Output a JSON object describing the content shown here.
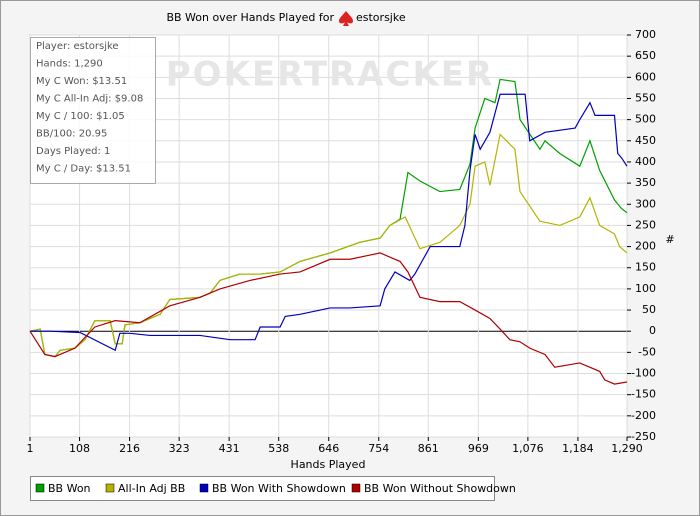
{
  "chart_data": {
    "type": "line",
    "title": "BB Won over Hands Played for",
    "player": "estorsjke",
    "watermark": "POKERTRACKER",
    "info_box": [
      "Player: estorsjke",
      "Hands: 1,290",
      "My C Won: $13.51",
      "My C All-In Adj: $9.08",
      "My C / 100: $1.05",
      "BB/100: 20.95",
      "Days Played: 1",
      "My C / Day: $13.51"
    ],
    "xlabel": "Hands Played",
    "ylabel": "#",
    "xlim": [
      1,
      1290
    ],
    "ylim": [
      -250,
      700
    ],
    "xticks": [
      1,
      108,
      216,
      323,
      431,
      538,
      646,
      754,
      861,
      969,
      {
        "value": 1076,
        "label": "1,076"
      },
      {
        "value": 1184,
        "label": "1,184"
      },
      {
        "value": 1290,
        "label": "1,290"
      }
    ],
    "yticks": [
      -250,
      -200,
      -150,
      -100,
      -50,
      0,
      50,
      100,
      150,
      200,
      250,
      300,
      350,
      400,
      450,
      500,
      550,
      600,
      650,
      700
    ],
    "grid": true,
    "series": [
      {
        "name": "BB Won",
        "color": "#00a000",
        "x": [
          1,
          23,
          33,
          55,
          66,
          98,
          120,
          141,
          174,
          185,
          200,
          206,
          238,
          282,
          303,
          368,
          390,
          411,
          454,
          498,
          541,
          584,
          649,
          713,
          757,
          778,
          800,
          817,
          843,
          886,
          929,
          951,
          962,
          983,
          1005,
          1016,
          1048,
          1059,
          1102,
          1113,
          1145,
          1188,
          1210,
          1231,
          1263,
          1278,
          1290
        ],
        "values": [
          0,
          5,
          -55,
          -60,
          -45,
          -40,
          -20,
          25,
          25,
          -30,
          -30,
          15,
          20,
          40,
          75,
          80,
          90,
          120,
          135,
          135,
          140,
          165,
          185,
          210,
          220,
          250,
          265,
          375,
          355,
          330,
          335,
          395,
          480,
          550,
          540,
          595,
          590,
          500,
          430,
          450,
          420,
          390,
          450,
          380,
          310,
          290,
          280
        ]
      },
      {
        "name": "All-In Adj BB",
        "color": "#b4b400",
        "x": [
          1,
          23,
          33,
          55,
          66,
          98,
          120,
          141,
          174,
          185,
          200,
          206,
          238,
          282,
          303,
          368,
          390,
          411,
          454,
          498,
          541,
          584,
          649,
          713,
          757,
          778,
          811,
          843,
          886,
          929,
          951,
          962,
          983,
          994,
          1016,
          1048,
          1059,
          1102,
          1145,
          1188,
          1210,
          1231,
          1263,
          1274,
          1290
        ],
        "values": [
          0,
          5,
          -55,
          -60,
          -45,
          -40,
          -20,
          25,
          25,
          -30,
          -30,
          15,
          20,
          40,
          75,
          80,
          90,
          120,
          135,
          135,
          140,
          165,
          185,
          210,
          220,
          250,
          270,
          195,
          210,
          250,
          300,
          390,
          400,
          345,
          465,
          430,
          330,
          260,
          250,
          270,
          315,
          250,
          230,
          200,
          185
        ]
      },
      {
        "name": "BB Won With Showdown",
        "color": "#0000c0",
        "x": [
          1,
          44,
          109,
          185,
          195,
          217,
          260,
          368,
          433,
          487,
          498,
          541,
          552,
          584,
          649,
          692,
          757,
          767,
          789,
          821,
          832,
          865,
          929,
          940,
          951,
          962,
          973,
          994,
          1016,
          1070,
          1080,
          1113,
          1178,
          1188,
          1210,
          1221,
          1263,
          1270,
          1278,
          1290
        ],
        "values": [
          0,
          0,
          -3,
          -45,
          -5,
          -5,
          -10,
          -10,
          -20,
          -20,
          10,
          10,
          35,
          40,
          55,
          55,
          60,
          100,
          140,
          120,
          135,
          200,
          200,
          250,
          380,
          465,
          430,
          470,
          560,
          560,
          450,
          470,
          480,
          500,
          540,
          510,
          510,
          420,
          410,
          390
        ]
      },
      {
        "name": "BB Won Without Showdown",
        "color": "#b00000",
        "x": [
          1,
          33,
          55,
          98,
          141,
          185,
          238,
          303,
          368,
          411,
          476,
          541,
          584,
          649,
          692,
          735,
          757,
          789,
          800,
          817,
          843,
          886,
          929,
          962,
          994,
          1016,
          1037,
          1059,
          1080,
          1113,
          1134,
          1188,
          1231,
          1242,
          1263,
          1290
        ],
        "values": [
          0,
          -55,
          -60,
          -40,
          10,
          25,
          20,
          60,
          80,
          100,
          120,
          135,
          140,
          170,
          170,
          180,
          185,
          170,
          165,
          140,
          80,
          70,
          70,
          50,
          30,
          5,
          -20,
          -25,
          -40,
          -55,
          -85,
          -75,
          -95,
          -115,
          -125,
          -120
        ]
      }
    ]
  }
}
